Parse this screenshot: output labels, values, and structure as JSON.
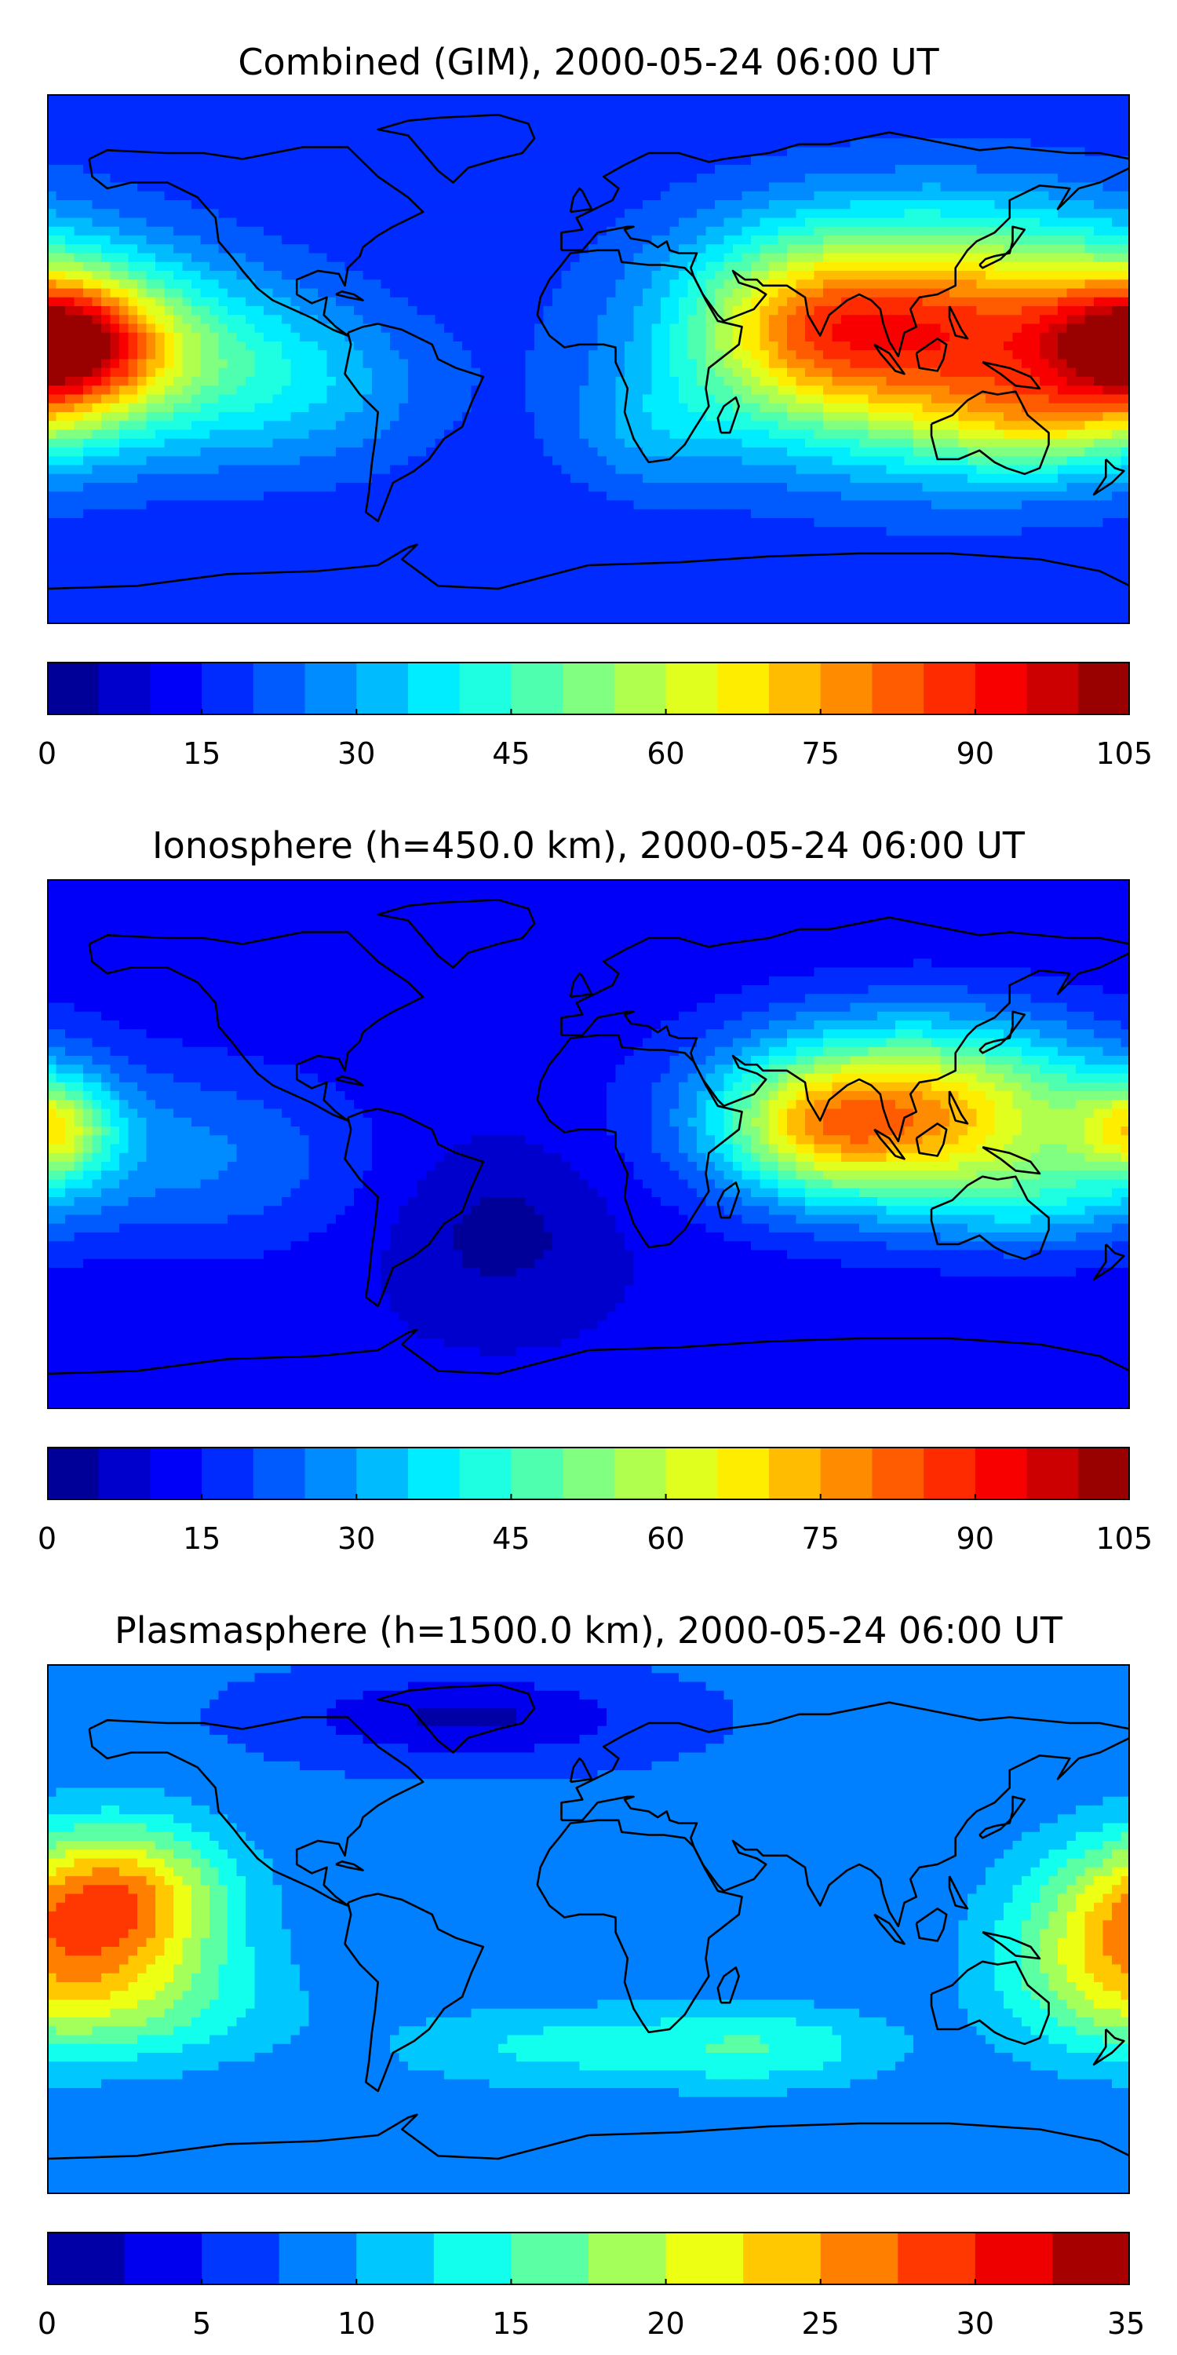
{
  "colors": {
    "jet": [
      "#00007f",
      "#0000c4",
      "#0000ff",
      "#0040ff",
      "#0080ff",
      "#00bfff",
      "#00ffff",
      "#40ffbf",
      "#80ff80",
      "#bfff40",
      "#ffff00",
      "#ffbf00",
      "#ff8000",
      "#ff4000",
      "#ff0000",
      "#c40000",
      "#7f0000"
    ],
    "coast": "#000000"
  },
  "chart_data": [
    {
      "type": "heatmap",
      "title": "Combined (GIM), 2000-05-24 06:00 UT",
      "xlabel": "",
      "ylabel": "",
      "colorbar": {
        "min": 0,
        "max": 105,
        "levels": 21,
        "ticks": [
          0,
          15,
          30,
          45,
          60,
          75,
          90,
          105
        ]
      },
      "field": {
        "background": 16,
        "blobs": [
          {
            "lon": 118,
            "lat": 8,
            "sx": 55,
            "sy": 28,
            "amp": 70
          },
          {
            "lon": 150,
            "lat": -22,
            "sx": 25,
            "sy": 12,
            "amp": 18
          },
          {
            "lon": 70,
            "lat": 12,
            "sx": 25,
            "sy": 20,
            "amp": 20
          },
          {
            "lon": -175,
            "lat": 5,
            "sx": 22,
            "sy": 16,
            "amp": 55
          },
          {
            "lon": -140,
            "lat": 0,
            "sx": 35,
            "sy": 22,
            "amp": 22
          },
          {
            "lon": -90,
            "lat": -10,
            "sx": 30,
            "sy": 20,
            "amp": 12
          },
          {
            "lon": 20,
            "lat": -25,
            "sx": 20,
            "sy": 15,
            "amp": 10
          }
        ]
      }
    },
    {
      "type": "heatmap",
      "title": "Ionosphere  (h=450.0 km), 2000-05-24 06:00 UT",
      "xlabel": "",
      "ylabel": "",
      "colorbar": {
        "min": 0,
        "max": 105,
        "levels": 21,
        "ticks": [
          0,
          15,
          30,
          45,
          60,
          75,
          90,
          105
        ]
      },
      "field": {
        "background": 11,
        "blobs": [
          {
            "lon": 110,
            "lat": 10,
            "sx": 45,
            "sy": 22,
            "amp": 62
          },
          {
            "lon": 75,
            "lat": 5,
            "sx": 22,
            "sy": 15,
            "amp": 22
          },
          {
            "lon": 150,
            "lat": -20,
            "sx": 25,
            "sy": 12,
            "amp": 12
          },
          {
            "lon": -178,
            "lat": 5,
            "sx": 14,
            "sy": 12,
            "amp": 35
          },
          {
            "lon": -130,
            "lat": -5,
            "sx": 40,
            "sy": 22,
            "amp": 14
          },
          {
            "lon": -30,
            "lat": -30,
            "sx": 25,
            "sy": 20,
            "amp": -8
          }
        ]
      }
    },
    {
      "type": "heatmap",
      "title": "Plasmasphere (h=1500.0 km), 2000-05-24 06:00 UT",
      "xlabel": "",
      "ylabel": "",
      "colorbar": {
        "min": 0,
        "max": 35,
        "levels": 14,
        "ticks": [
          0,
          5,
          10,
          15,
          20,
          25,
          30,
          35
        ]
      },
      "field": {
        "background": 8,
        "blobs": [
          {
            "lon": -155,
            "lat": 10,
            "sx": 25,
            "sy": 18,
            "amp": 17
          },
          {
            "lon": -155,
            "lat": -25,
            "sx": 35,
            "sy": 15,
            "amp": 8
          },
          {
            "lon": 170,
            "lat": -5,
            "sx": 25,
            "sy": 22,
            "amp": 10
          },
          {
            "lon": -10,
            "lat": -40,
            "sx": 40,
            "sy": 10,
            "amp": 5
          },
          {
            "lon": 60,
            "lat": -40,
            "sx": 30,
            "sy": 10,
            "amp": 6
          },
          {
            "lon": -40,
            "lat": 72,
            "sx": 40,
            "sy": 10,
            "amp": -6
          }
        ]
      }
    }
  ]
}
